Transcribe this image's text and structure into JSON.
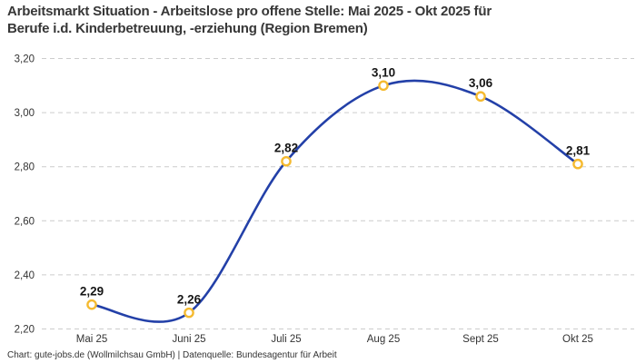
{
  "title": {
    "line1": "Arbeitsmarkt Situation - Arbeitslose pro offene Stelle: Mai 2025 - Okt 2025 für",
    "line2": "Berufe i.d. Kinderbetreuung, -erziehung (Region Bremen)"
  },
  "footer": {
    "credit": "Chart: gute-jobs.de (Wollmilchsau GmbH) | Datenquelle: Bundesagentur für Arbeit"
  },
  "chart_data": {
    "type": "line",
    "title": "Arbeitsmarkt Situation - Arbeitslose pro offene Stelle: Mai 2025 - Okt 2025 für Berufe i.d. Kinderbetreuung, -erziehung (Region Bremen)",
    "categories": [
      "Mai 25",
      "Juni 25",
      "Juli 25",
      "Aug 25",
      "Sept 25",
      "Okt 25"
    ],
    "values": [
      2.29,
      2.26,
      2.82,
      3.1,
      3.06,
      2.81
    ],
    "value_labels": [
      "2,29",
      "2,26",
      "2,82",
      "3,10",
      "3,06",
      "2,81"
    ],
    "y_ticks": {
      "labels": [
        "2,20",
        "2,40",
        "2,60",
        "2,80",
        "3,00",
        "3,20"
      ],
      "values": [
        2.2,
        2.4,
        2.6,
        2.8,
        3.0,
        3.2
      ]
    },
    "ylim": [
      2.2,
      3.2
    ],
    "xlabel": "",
    "ylabel": "",
    "grid": "horizontal-dashed",
    "legend": "none",
    "curve": "smooth",
    "colors": {
      "line": "#2340a8",
      "marker_ring": "#f5ba30",
      "marker_fill": "#ffffff",
      "grid": "#cccccc",
      "value_label": "#161616",
      "tick_label": "#333333",
      "title": "#373737"
    }
  }
}
